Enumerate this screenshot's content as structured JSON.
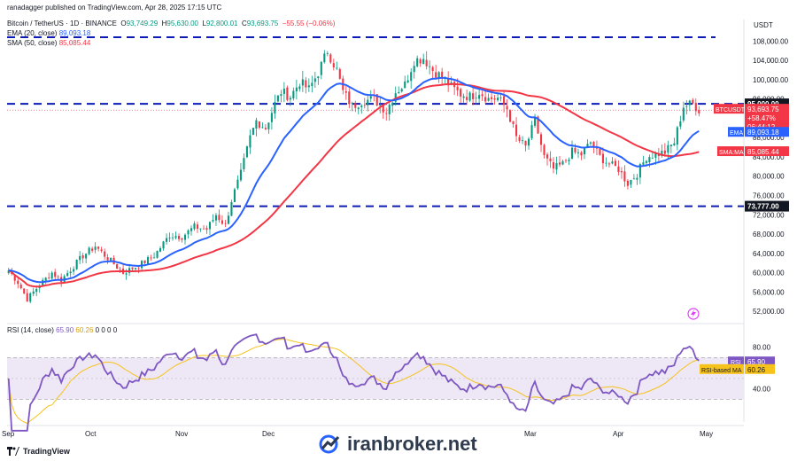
{
  "header": {
    "publisher_line": "ranadagger published on TradingView.com, Apr 28, 2025 17:15 UTC",
    "symbol_line": "Bitcoin / TetherUS · 1D · BINANCE",
    "ohlc": {
      "o_label": "O",
      "o": "93,749.29",
      "h_label": "H",
      "h": "95,630.00",
      "l_label": "L",
      "l": "92,800.01",
      "c_label": "C",
      "c": "93,693.75",
      "chg": "−55.55 (−0.06%)"
    },
    "ema_line": {
      "label": "EMA (20, close)",
      "value": "89,093.18"
    },
    "sma_line": {
      "label": "SMA (50, close)",
      "value": "85,085.44"
    },
    "rsi_line": {
      "label": "RSI (14, close)",
      "value": "65.90",
      "ma": "60.26",
      "zeros": "0 0 0 0"
    },
    "currency": "USDT"
  },
  "colors": {
    "up": "#089981",
    "down": "#f23645",
    "ema": "#2962ff",
    "sma": "#f23645",
    "rsi": "#7e57c2",
    "rsi_ma": "#f7c21a",
    "level": "#0d1cb8",
    "band": "#ede7f6"
  },
  "price_axis": {
    "ticks": [
      "108,000.00",
      "104,000.00",
      "100,000.00",
      "96,000.00",
      "92,000.00",
      "88,000.00",
      "84,000.00",
      "80,000.00",
      "76,000.00",
      "72,000.00",
      "68,000.00",
      "64,000.00",
      "60,000.00",
      "56,000.00",
      "52,000.00"
    ],
    "tick_values": [
      108000,
      104000,
      100000,
      96000,
      92000,
      88000,
      84000,
      80000,
      76000,
      72000,
      68000,
      64000,
      60000,
      56000,
      52000
    ]
  },
  "levels": [
    {
      "label": "95,000.00",
      "value": 95000
    },
    {
      "label": "73,777.00",
      "value": 73777
    },
    {
      "label": "",
      "value": 108800
    }
  ],
  "last_price_tag": {
    "symbol": "BTCUSDT",
    "price": "93,693.75",
    "pct": "+58.47%",
    "countdown": "06:44:12"
  },
  "ema_tag": {
    "label": "EMA",
    "value": "89,093.18"
  },
  "sma_tag": {
    "label": "SMA:MA",
    "value": "85,085.44"
  },
  "rsi_axis": {
    "ticks": [
      "80.00",
      "40.00"
    ],
    "tag_rsi": {
      "label": "RSI",
      "value": "65.90"
    },
    "tag_ma": {
      "label": "RSI-based MA",
      "value": "60.26"
    }
  },
  "time_axis": {
    "labels": [
      "Sep",
      "Oct",
      "Nov",
      "Dec",
      "Mar",
      "Apr",
      "May"
    ]
  },
  "footer": {
    "tv": "TradingView",
    "watermark": "iranbroker.net"
  },
  "chart_data": {
    "type": "candlestick",
    "x_start": "2024-09-01",
    "x_unit": "day",
    "y_range": [
      50000,
      111000
    ],
    "close_anchors": [
      [
        0,
        60500
      ],
      [
        3,
        58000
      ],
      [
        6,
        54500
      ],
      [
        10,
        57500
      ],
      [
        14,
        60000
      ],
      [
        17,
        58500
      ],
      [
        24,
        63500
      ],
      [
        28,
        65500
      ],
      [
        32,
        63000
      ],
      [
        37,
        60000
      ],
      [
        42,
        61500
      ],
      [
        47,
        63500
      ],
      [
        52,
        67800
      ],
      [
        56,
        67500
      ],
      [
        60,
        69500
      ],
      [
        64,
        69000
      ],
      [
        67,
        72000
      ],
      [
        70,
        69800
      ],
      [
        72,
        75000
      ],
      [
        75,
        80500
      ],
      [
        78,
        88000
      ],
      [
        80,
        91500
      ],
      [
        83,
        90000
      ],
      [
        86,
        95000
      ],
      [
        88,
        97500
      ],
      [
        91,
        96500
      ],
      [
        94,
        99500
      ],
      [
        97,
        98000
      ],
      [
        100,
        101500
      ],
      [
        103,
        106000
      ],
      [
        106,
        102000
      ],
      [
        108,
        97500
      ],
      [
        111,
        94500
      ],
      [
        114,
        95500
      ],
      [
        118,
        96000
      ],
      [
        122,
        93500
      ],
      [
        125,
        97500
      ],
      [
        128,
        99000
      ],
      [
        131,
        104000
      ],
      [
        134,
        104500
      ],
      [
        137,
        102000
      ],
      [
        140,
        100500
      ],
      [
        143,
        98500
      ],
      [
        146,
        97000
      ],
      [
        149,
        96500
      ],
      [
        152,
        97500
      ],
      [
        155,
        96000
      ],
      [
        158,
        96200
      ],
      [
        161,
        94000
      ],
      [
        164,
        88000
      ],
      [
        167,
        86000
      ],
      [
        170,
        91500
      ],
      [
        173,
        84000
      ],
      [
        176,
        81500
      ],
      [
        179,
        82500
      ],
      [
        182,
        85000
      ],
      [
        185,
        84500
      ],
      [
        188,
        87000
      ],
      [
        191,
        84000
      ],
      [
        194,
        82500
      ],
      [
        197,
        81500
      ],
      [
        200,
        78500
      ],
      [
        203,
        80500
      ],
      [
        206,
        84000
      ],
      [
        209,
        84500
      ],
      [
        212,
        85000
      ],
      [
        215,
        87000
      ],
      [
        218,
        94500
      ],
      [
        221,
        95000
      ],
      [
        223,
        93700
      ]
    ],
    "ema_20": {
      "name": "EMA (20, close)",
      "last": 89093.18
    },
    "sma_50": {
      "name": "SMA (50, close)",
      "last": 85085.44
    },
    "rsi": {
      "name": "RSI (14, close)",
      "last": 65.9,
      "ma_last": 60.26,
      "upper": 70,
      "lower": 30
    }
  }
}
